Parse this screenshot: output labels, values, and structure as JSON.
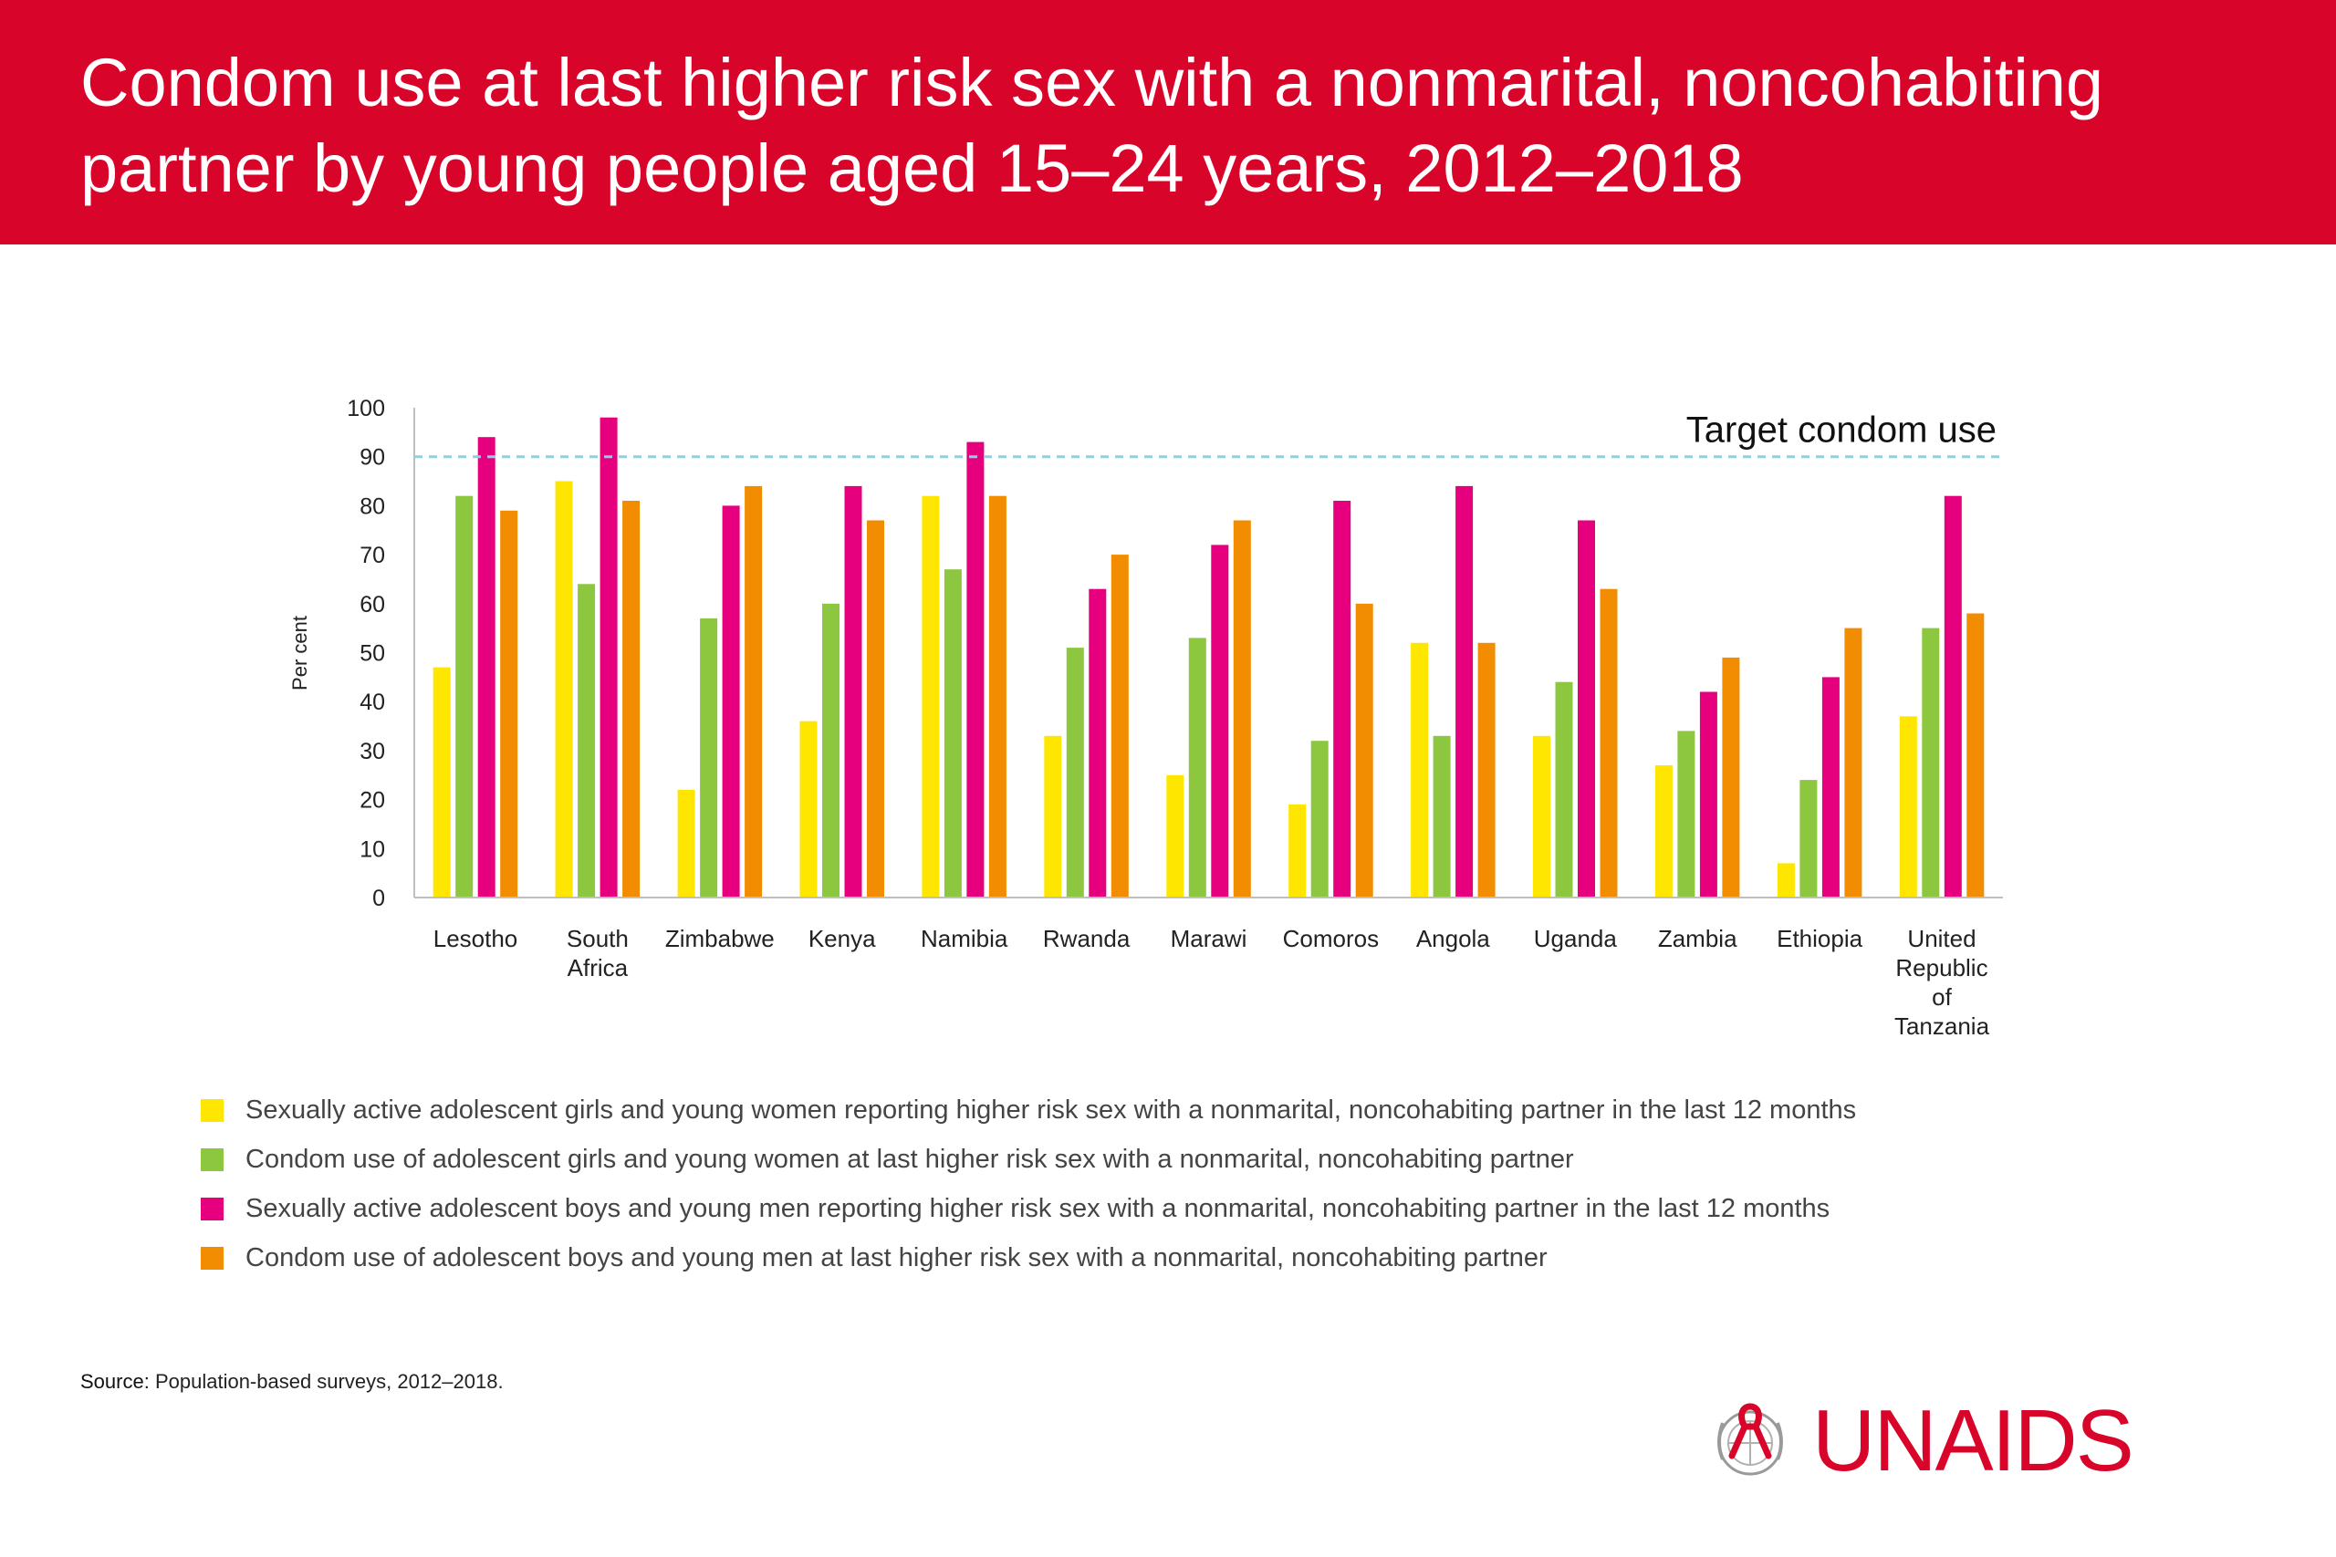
{
  "header": {
    "title": "Condom use at last higher risk sex with a nonmarital, noncohabiting partner by young people aged 15–24 years, 2012–2018"
  },
  "colors": {
    "header_bg": "#d90429",
    "yellow": "#ffe600",
    "green": "#8dc63f",
    "magenta": "#e6007e",
    "orange": "#f28c00",
    "target_line": "#8ccfe8"
  },
  "chart_data": {
    "type": "bar",
    "ylabel": "Per cent",
    "ylim": [
      0,
      100
    ],
    "yticks": [
      0,
      10,
      20,
      30,
      40,
      50,
      60,
      70,
      80,
      90,
      100
    ],
    "grid": false,
    "legend_position": "bottom",
    "reference_line": {
      "value": 90,
      "label": "Target condom use"
    },
    "categories": [
      "Lesotho",
      "South Africa",
      "Zimbabwe",
      "Kenya",
      "Namibia",
      "Rwanda",
      "Marawi",
      "Comoros",
      "Angola",
      "Uganda",
      "Zambia",
      "Ethiopia",
      "United Republic of Tanzania"
    ],
    "series": [
      {
        "name": "Sexually active adolescent girls and young women reporting higher risk sex with a nonmarital, noncohabiting partner in the last 12 months",
        "color": "#ffe600",
        "values": [
          47,
          85,
          22,
          36,
          82,
          33,
          25,
          19,
          52,
          33,
          27,
          7,
          37
        ]
      },
      {
        "name": "Condom use of adolescent girls and young women at last higher risk sex with a nonmarital, noncohabiting partner",
        "color": "#8dc63f",
        "values": [
          82,
          64,
          57,
          60,
          67,
          51,
          53,
          32,
          33,
          44,
          34,
          24,
          55
        ]
      },
      {
        "name": "Sexually active adolescent boys and young men reporting higher risk sex with a nonmarital, noncohabiting partner in the last 12 months",
        "color": "#e6007e",
        "values": [
          94,
          98,
          80,
          84,
          93,
          63,
          72,
          81,
          84,
          77,
          42,
          45,
          82
        ]
      },
      {
        "name": "Condom use of adolescent boys and young men at last higher risk sex with a nonmarital, noncohabiting partner",
        "color": "#f28c00",
        "values": [
          79,
          81,
          84,
          77,
          82,
          70,
          77,
          60,
          52,
          63,
          49,
          55,
          58
        ]
      }
    ]
  },
  "source": {
    "label": "Source:",
    "text": "Population-based surveys, 2012–2018."
  },
  "logo": {
    "text": "UNAIDS",
    "emblem_icon": "un-emblem-red-ribbon-icon"
  }
}
